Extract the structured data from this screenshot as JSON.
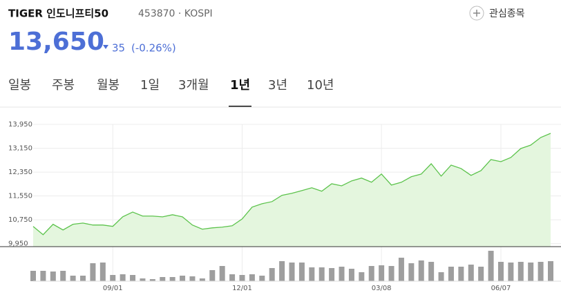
{
  "header": {
    "name": "TIGER 인도니프티50",
    "subtitle": "453870 · KOSPI",
    "watch": "관심종목"
  },
  "price": {
    "value": "13,650",
    "change": "35",
    "percent": "(-0.26%)"
  },
  "tabs": {
    "items": [
      "일봉",
      "주봉",
      "월봉",
      "1일",
      "3개월",
      "1년",
      "3년",
      "10년"
    ],
    "active": 5
  },
  "chart_data": {
    "type": "line",
    "categories": [
      null,
      null,
      null,
      null,
      null,
      null,
      null,
      null,
      "09/01",
      null,
      null,
      null,
      null,
      null,
      null,
      null,
      null,
      null,
      null,
      null,
      null,
      "12/01",
      null,
      null,
      null,
      null,
      null,
      null,
      null,
      null,
      null,
      null,
      null,
      null,
      null,
      "03/08",
      null,
      null,
      null,
      null,
      null,
      null,
      null,
      null,
      null,
      null,
      null,
      "06/07",
      null,
      null,
      null,
      null,
      null
    ],
    "series": [
      {
        "color": "#5cc34c",
        "values": [
          10528,
          10250,
          10600,
          10410,
          10600,
          10640,
          10575,
          10575,
          10530,
          10850,
          11010,
          10875,
          10875,
          10850,
          10920,
          10850,
          10575,
          10435,
          10480,
          10505,
          10550,
          10780,
          11175,
          11290,
          11360,
          11570,
          11640,
          11730,
          11825,
          11710,
          11960,
          11890,
          12055,
          12150,
          12010,
          12285,
          11915,
          12010,
          12195,
          12285,
          12630,
          12215,
          12585,
          12470,
          12240,
          12400,
          12770,
          12700,
          12840,
          13140,
          13255,
          13510,
          13650
        ]
      }
    ],
    "volume": {
      "color": "#9e9e9e",
      "values": [
        15,
        15,
        14,
        15,
        8,
        8,
        26,
        27,
        9,
        10,
        9,
        4,
        3,
        6,
        6,
        8,
        7,
        4,
        16,
        22,
        10,
        9,
        10,
        8,
        19,
        29,
        27,
        27,
        20,
        20,
        19,
        21,
        18,
        13,
        22,
        23,
        22,
        34,
        26,
        30,
        28,
        13,
        21,
        21,
        24,
        21,
        44,
        28,
        27,
        28,
        27,
        28,
        29
      ]
    },
    "ylim": [
      9850,
      14530
    ],
    "yticks": [
      {
        "value": 9950,
        "label": "9,950"
      },
      {
        "value": 10750,
        "label": "10,750"
      },
      {
        "value": 11550,
        "label": "11,550"
      },
      {
        "value": 12350,
        "label": "12,350"
      },
      {
        "value": 13150,
        "label": "13,150"
      },
      {
        "value": 13950,
        "label": "13,950"
      }
    ],
    "grid": true
  }
}
